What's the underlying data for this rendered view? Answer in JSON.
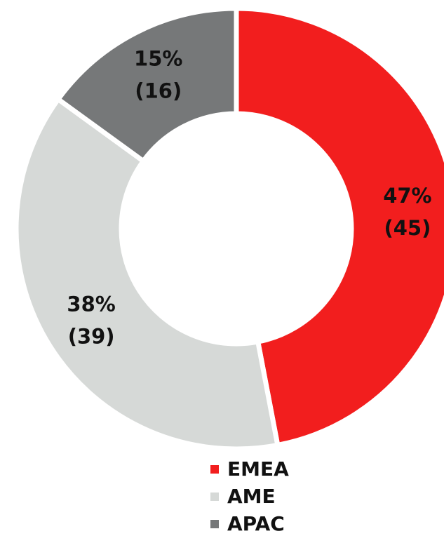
{
  "chart_data": {
    "type": "donut",
    "categories": [
      "EMEA",
      "AME",
      "APAC"
    ],
    "values": [
      47,
      38,
      15
    ],
    "value_labels": [
      "47%",
      "38%",
      "15%"
    ],
    "counts": [
      45,
      39,
      16
    ],
    "count_labels": [
      "(45)",
      "(39)",
      "(16)"
    ],
    "colors": [
      "#f21e1e",
      "#d6d9d7",
      "#767879"
    ],
    "legend": "bottom"
  }
}
